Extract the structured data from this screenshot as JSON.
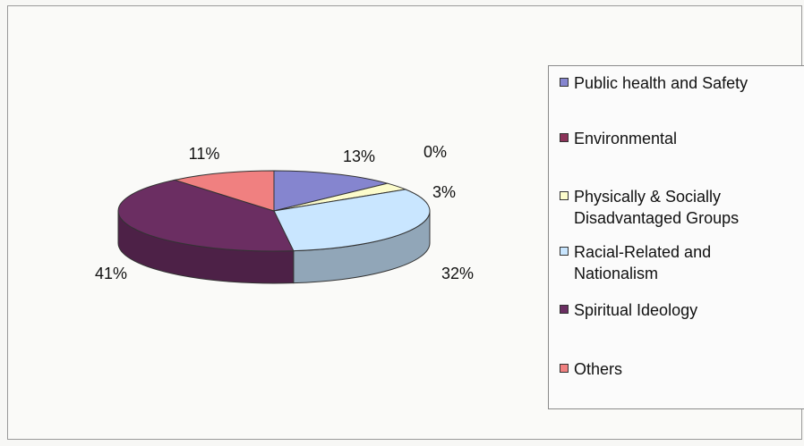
{
  "chart_data": {
    "type": "pie",
    "style": "3d-exploded-none",
    "legend_position": "right",
    "slices": [
      {
        "name": "Public health and Safety",
        "value": 13,
        "label": "13%",
        "color": "#8585cf"
      },
      {
        "name": "Environmental",
        "value": 0,
        "label": "0%",
        "color": "#8b3359"
      },
      {
        "name": "Physically & Socially Disadvantaged Groups",
        "value": 3,
        "label": "3%",
        "color": "#fcfccc"
      },
      {
        "name": "Racial-Related and Nationalism",
        "value": 32,
        "label": "32%",
        "color": "#c9e6ff"
      },
      {
        "name": "Spiritual Ideology",
        "value": 41,
        "label": "41%",
        "color": "#6b2e62"
      },
      {
        "name": "Others",
        "value": 11,
        "label": "11%",
        "color": "#f08080"
      }
    ],
    "legend": [
      {
        "lines": [
          "Public health and Safety"
        ],
        "color": "#8585cf"
      },
      {
        "lines": [
          "Environmental"
        ],
        "color": "#8b3359"
      },
      {
        "lines": [
          "Physically & Socially",
          "Disadvantaged Groups"
        ],
        "color": "#fcfccc"
      },
      {
        "lines": [
          "Racial-Related and",
          "Nationalism"
        ],
        "color": "#c9e6ff"
      },
      {
        "lines": [
          "Spiritual Ideology"
        ],
        "color": "#6b2e62"
      },
      {
        "lines": [
          "Others"
        ],
        "color": "#f08080"
      }
    ]
  }
}
